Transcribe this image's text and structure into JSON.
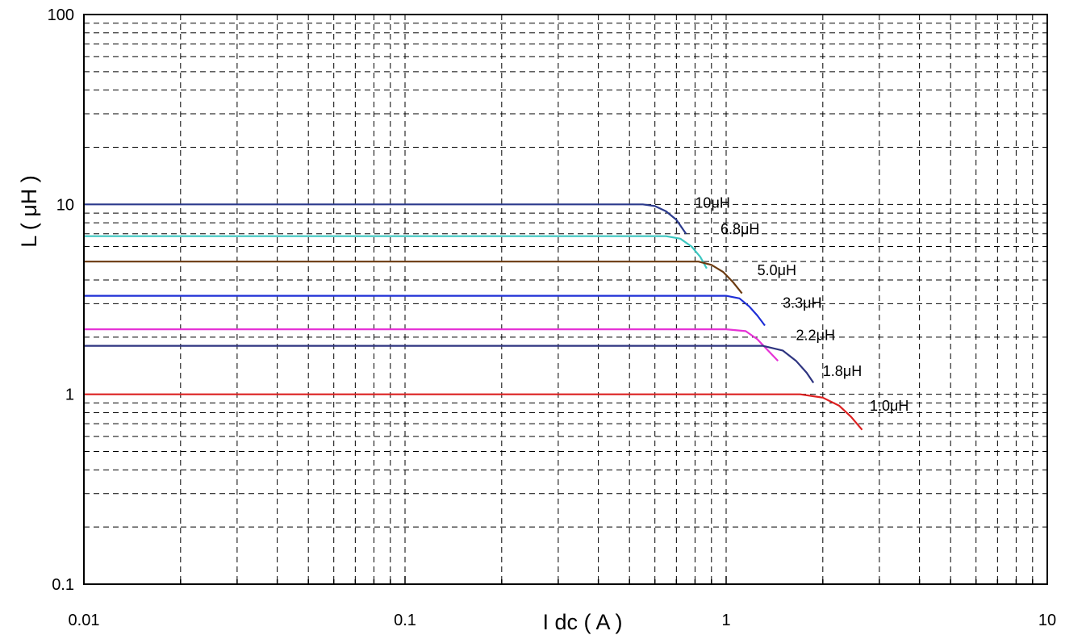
{
  "chart_data": {
    "type": "line",
    "title": "",
    "xlabel": "I dc ( A )",
    "ylabel": "L ( μH )",
    "xscale": "log",
    "yscale": "log",
    "xlim": [
      0.01,
      10
    ],
    "ylim": [
      0.1,
      100
    ],
    "grid": true,
    "legend": "inline labels at curve ends",
    "x_ticks": [
      {
        "value": 0.01,
        "label": "0.01"
      },
      {
        "value": 0.1,
        "label": "0.1"
      },
      {
        "value": 1,
        "label": "1"
      },
      {
        "value": 10,
        "label": "10"
      }
    ],
    "y_ticks": [
      {
        "value": 0.1,
        "label": "0.1"
      },
      {
        "value": 1,
        "label": "1"
      },
      {
        "value": 10,
        "label": "10"
      },
      {
        "value": 100,
        "label": "100"
      }
    ],
    "series": [
      {
        "name": "10μH",
        "color": "#2b3a8c",
        "label_at": [
          0.8,
          9.6
        ],
        "points": [
          [
            0.01,
            10
          ],
          [
            0.55,
            10
          ],
          [
            0.6,
            9.8
          ],
          [
            0.65,
            9.2
          ],
          [
            0.7,
            8.3
          ],
          [
            0.75,
            7.0
          ]
        ]
      },
      {
        "name": "6.8μH",
        "color": "#3cc6c0",
        "label_at": [
          0.96,
          7.0
        ],
        "points": [
          [
            0.01,
            6.8
          ],
          [
            0.65,
            6.8
          ],
          [
            0.72,
            6.6
          ],
          [
            0.78,
            6.0
          ],
          [
            0.83,
            5.3
          ],
          [
            0.87,
            4.6
          ]
        ]
      },
      {
        "name": "5.0μH",
        "color": "#6b3a10",
        "label_at": [
          1.25,
          4.25
        ],
        "points": [
          [
            0.01,
            5.0
          ],
          [
            0.82,
            5.0
          ],
          [
            0.9,
            4.8
          ],
          [
            0.98,
            4.4
          ],
          [
            1.05,
            3.9
          ],
          [
            1.12,
            3.4
          ]
        ]
      },
      {
        "name": "3.3μH",
        "color": "#1e2fd6",
        "label_at": [
          1.5,
          2.85
        ],
        "points": [
          [
            0.01,
            3.3
          ],
          [
            1.0,
            3.3
          ],
          [
            1.1,
            3.2
          ],
          [
            1.18,
            2.9
          ],
          [
            1.25,
            2.6
          ],
          [
            1.32,
            2.3
          ]
        ]
      },
      {
        "name": "2.2μH",
        "color": "#e632d6",
        "label_at": [
          1.65,
          1.93
        ],
        "points": [
          [
            0.01,
            2.2
          ],
          [
            1.0,
            2.2
          ],
          [
            1.15,
            2.15
          ],
          [
            1.25,
            1.95
          ],
          [
            1.35,
            1.7
          ],
          [
            1.45,
            1.5
          ]
        ]
      },
      {
        "name": "1.8μH",
        "color": "#2e3480",
        "label_at": [
          2.0,
          1.25
        ],
        "points": [
          [
            0.01,
            1.8
          ],
          [
            1.3,
            1.8
          ],
          [
            1.5,
            1.7
          ],
          [
            1.65,
            1.5
          ],
          [
            1.78,
            1.3
          ],
          [
            1.87,
            1.15
          ]
        ]
      },
      {
        "name": "1.0μH",
        "color": "#dc2020",
        "label_at": [
          2.8,
          0.82
        ],
        "points": [
          [
            0.01,
            1.0
          ],
          [
            1.7,
            1.0
          ],
          [
            2.0,
            0.96
          ],
          [
            2.25,
            0.87
          ],
          [
            2.45,
            0.76
          ],
          [
            2.65,
            0.65
          ]
        ]
      }
    ]
  }
}
